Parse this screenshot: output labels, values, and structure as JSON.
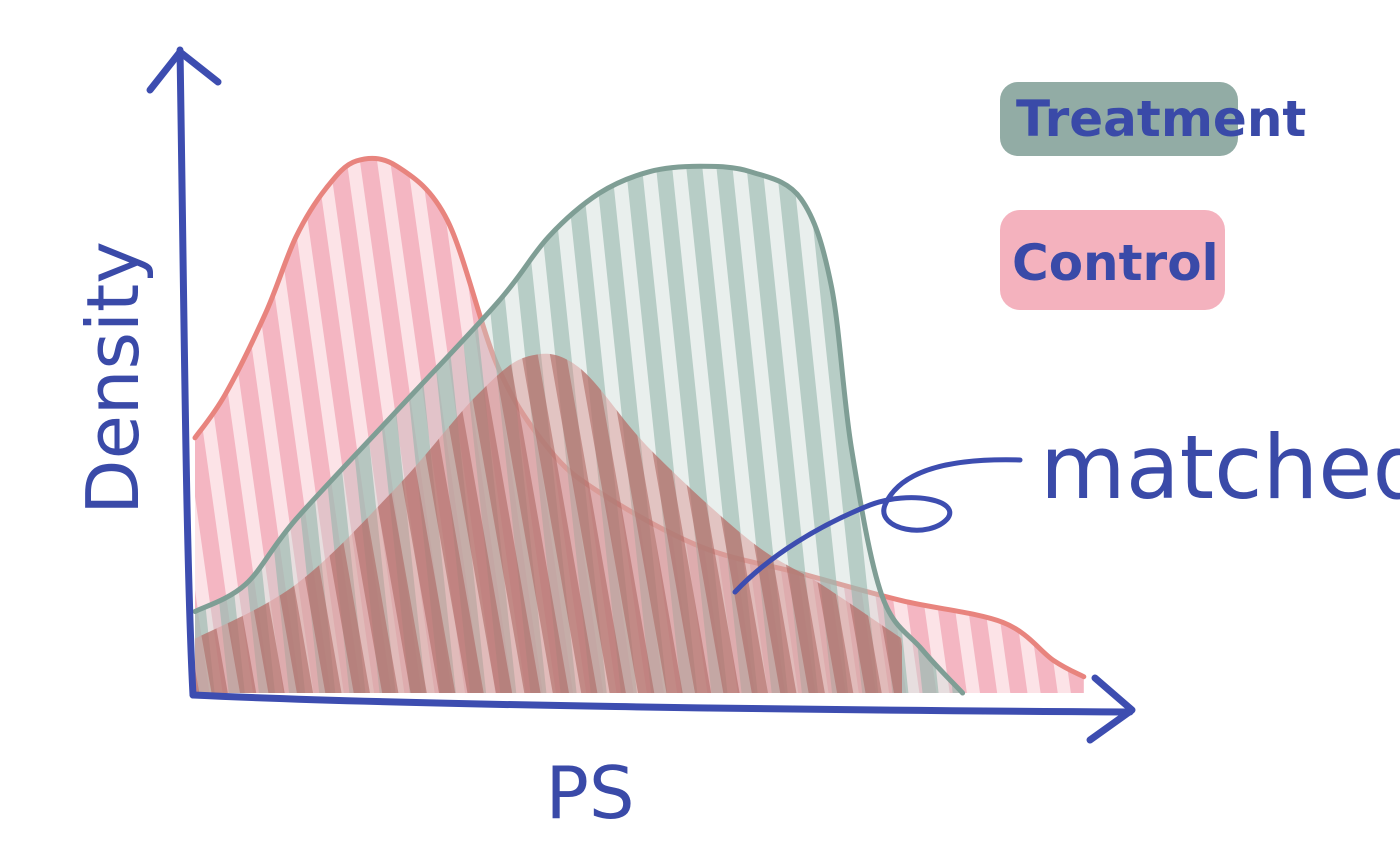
{
  "chart_data": {
    "type": "area",
    "title": "",
    "xlabel": "PS",
    "ylabel": "Density",
    "xlim": [
      0,
      1
    ],
    "ylim": [
      0,
      1
    ],
    "grid": false,
    "legend_position": "top-right",
    "legend": [
      {
        "label": "Treatment",
        "color": "#7f9e95"
      },
      {
        "label": "Control",
        "color": "#f2a4b3"
      }
    ],
    "series": [
      {
        "name": "Control",
        "color": "#f2a4b3",
        "stroke": "#e8847e",
        "x": [
          0.0,
          0.03,
          0.07,
          0.1,
          0.13,
          0.16,
          0.2,
          0.25,
          0.3,
          0.35,
          0.4,
          0.5,
          0.6,
          0.7,
          0.8,
          0.85,
          0.88
        ],
        "y": [
          0.47,
          0.55,
          0.7,
          0.84,
          0.93,
          0.98,
          0.97,
          0.87,
          0.6,
          0.45,
          0.37,
          0.27,
          0.22,
          0.17,
          0.13,
          0.06,
          0.03
        ]
      },
      {
        "name": "Treatment",
        "color": "#9fbcb4",
        "stroke": "#7f9e95",
        "x": [
          0.0,
          0.05,
          0.1,
          0.2,
          0.3,
          0.35,
          0.4,
          0.45,
          0.5,
          0.55,
          0.6,
          0.63,
          0.65,
          0.68,
          0.72,
          0.76
        ],
        "y": [
          0.15,
          0.2,
          0.32,
          0.52,
          0.72,
          0.84,
          0.92,
          0.96,
          0.97,
          0.96,
          0.91,
          0.75,
          0.45,
          0.18,
          0.08,
          0.0
        ]
      },
      {
        "name": "matched",
        "color": "#e17d7b",
        "x": [
          0.0,
          0.1,
          0.2,
          0.28,
          0.33,
          0.38,
          0.45,
          0.55,
          0.62,
          0.7
        ],
        "y": [
          0.1,
          0.2,
          0.38,
          0.55,
          0.62,
          0.6,
          0.45,
          0.28,
          0.2,
          0.1
        ]
      }
    ],
    "annotations": [
      {
        "text": "matched",
        "target_series": "matched"
      }
    ]
  }
}
